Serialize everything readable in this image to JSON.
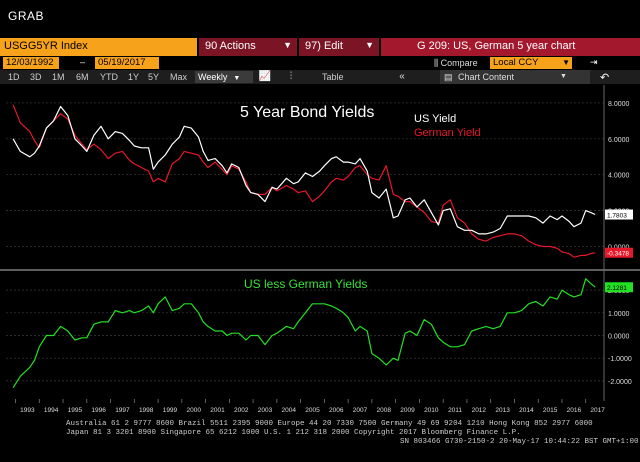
{
  "window": {
    "title": "GRAB"
  },
  "command_bar": {
    "ticker": "USGG5YR Index",
    "actions_label": "90 Actions",
    "edit_label": "97) Edit",
    "graph_title": "G 209: US, German 5 year chart"
  },
  "date_bar": {
    "start_date": "12/03/1992",
    "end_date": "05/19/2017",
    "compare_label": "Compare",
    "currency": "Local CCY"
  },
  "toolbar": {
    "periods": [
      "1D",
      "3D",
      "1M",
      "6M",
      "YTD",
      "1Y",
      "5Y",
      "Max"
    ],
    "frequency": "Weekly",
    "table_label": "Table",
    "chart_content_label": "Chart Content"
  },
  "chart_data": [
    {
      "type": "line",
      "title": "5 Year Bond Yields",
      "yticks": [
        "8.0000",
        "6.0000",
        "4.0000",
        "2.0000",
        "0.0000"
      ],
      "ylim": [
        -1.2,
        9.0
      ],
      "grid": true,
      "legend_position": "top-right",
      "colors": {
        "US Yield": "#ffffff",
        "German Yield": "#e8172a"
      },
      "series": [
        {
          "name": "US Yield",
          "x": [
            1992.9,
            1993.2,
            1993.6,
            1993.8,
            1994.0,
            1994.3,
            1994.6,
            1994.9,
            1995.2,
            1995.5,
            1995.8,
            1996.0,
            1996.3,
            1996.6,
            1996.9,
            1997.2,
            1997.5,
            1997.8,
            1998.0,
            1998.3,
            1998.6,
            1998.8,
            1999.0,
            1999.3,
            1999.6,
            1999.9,
            2000.1,
            2000.4,
            2000.7,
            2000.9,
            2001.1,
            2001.4,
            2001.7,
            2001.9,
            2002.1,
            2002.4,
            2002.7,
            2002.9,
            2003.2,
            2003.5,
            2003.8,
            2004.0,
            2004.4,
            2004.7,
            2004.9,
            2005.2,
            2005.5,
            2005.8,
            2006.0,
            2006.3,
            2006.5,
            2006.8,
            2007.0,
            2007.3,
            2007.5,
            2007.8,
            2008.0,
            2008.3,
            2008.6,
            2008.9,
            2009.1,
            2009.4,
            2009.6,
            2009.9,
            2010.2,
            2010.5,
            2010.8,
            2011.0,
            2011.3,
            2011.6,
            2011.9,
            2012.2,
            2012.5,
            2012.8,
            2013.1,
            2013.4,
            2013.7,
            2014.0,
            2014.3,
            2014.6,
            2014.9,
            2015.2,
            2015.5,
            2015.8,
            2016.0,
            2016.3,
            2016.5,
            2016.8,
            2017.0,
            2017.2,
            2017.4
          ],
          "values": [
            6.0,
            5.3,
            5.0,
            5.2,
            5.6,
            6.6,
            7.0,
            7.8,
            7.3,
            6.0,
            5.6,
            5.3,
            6.2,
            6.7,
            6.0,
            6.4,
            6.3,
            5.9,
            5.6,
            5.5,
            5.5,
            4.3,
            4.7,
            5.1,
            5.7,
            6.1,
            6.7,
            6.6,
            6.1,
            5.3,
            4.8,
            4.9,
            4.5,
            4.1,
            4.6,
            4.4,
            3.4,
            3.0,
            2.9,
            2.5,
            3.3,
            3.2,
            3.8,
            3.5,
            3.6,
            4.1,
            3.9,
            4.2,
            4.5,
            4.9,
            5.0,
            4.7,
            4.7,
            4.6,
            4.9,
            4.2,
            3.0,
            2.7,
            3.2,
            1.6,
            1.7,
            2.6,
            2.7,
            2.2,
            2.6,
            1.9,
            1.2,
            2.0,
            2.1,
            1.1,
            0.9,
            0.9,
            0.7,
            0.7,
            0.8,
            1.0,
            1.7,
            1.7,
            1.7,
            1.7,
            1.6,
            1.3,
            1.7,
            1.5,
            1.7,
            1.4,
            1.1,
            1.3,
            2.0,
            1.9,
            1.78
          ]
        },
        {
          "name": "German Yield",
          "x": [
            1992.9,
            1993.2,
            1993.6,
            1993.8,
            1994.0,
            1994.3,
            1994.6,
            1994.9,
            1995.2,
            1995.5,
            1995.8,
            1996.0,
            1996.3,
            1996.6,
            1996.9,
            1997.2,
            1997.5,
            1997.8,
            1998.0,
            1998.3,
            1998.6,
            1998.8,
            1999.0,
            1999.3,
            1999.6,
            1999.9,
            2000.1,
            2000.4,
            2000.7,
            2000.9,
            2001.1,
            2001.4,
            2001.7,
            2001.9,
            2002.1,
            2002.4,
            2002.7,
            2002.9,
            2003.2,
            2003.5,
            2003.8,
            2004.0,
            2004.4,
            2004.7,
            2004.9,
            2005.2,
            2005.5,
            2005.8,
            2006.0,
            2006.3,
            2006.5,
            2006.8,
            2007.0,
            2007.3,
            2007.5,
            2007.8,
            2008.0,
            2008.3,
            2008.6,
            2008.9,
            2009.1,
            2009.4,
            2009.6,
            2009.9,
            2010.2,
            2010.5,
            2010.8,
            2011.0,
            2011.3,
            2011.6,
            2011.9,
            2012.2,
            2012.5,
            2012.8,
            2013.1,
            2013.4,
            2013.7,
            2014.0,
            2014.3,
            2014.6,
            2014.9,
            2015.2,
            2015.5,
            2015.8,
            2016.0,
            2016.3,
            2016.5,
            2016.8,
            2017.0,
            2017.2,
            2017.4
          ],
          "values": [
            7.9,
            6.9,
            6.4,
            5.9,
            5.5,
            6.6,
            7.0,
            7.4,
            7.1,
            6.2,
            5.7,
            5.4,
            5.7,
            5.4,
            4.9,
            5.2,
            5.3,
            4.8,
            4.6,
            4.4,
            4.2,
            3.6,
            3.8,
            3.6,
            4.6,
            4.9,
            5.3,
            5.2,
            5.1,
            4.7,
            4.4,
            4.7,
            4.3,
            4.0,
            4.5,
            4.3,
            3.6,
            3.0,
            2.9,
            2.9,
            3.3,
            3.1,
            3.4,
            3.2,
            3.0,
            3.1,
            2.5,
            2.8,
            3.1,
            3.6,
            3.8,
            3.7,
            3.9,
            4.4,
            4.5,
            4.0,
            3.8,
            3.7,
            4.5,
            2.9,
            2.8,
            2.5,
            2.5,
            2.2,
            1.9,
            1.4,
            1.3,
            2.3,
            2.6,
            1.6,
            1.3,
            0.7,
            0.4,
            0.3,
            0.5,
            0.6,
            0.7,
            0.7,
            0.6,
            0.3,
            0.1,
            0.0,
            0.0,
            -0.1,
            -0.3,
            -0.4,
            -0.6,
            -0.5,
            -0.5,
            -0.4,
            -0.35
          ]
        }
      ],
      "last_values": {
        "US Yield": "1.7803",
        "German Yield": "-0.3478"
      }
    },
    {
      "type": "line",
      "title": "US less German Yields",
      "yticks": [
        "2.0000",
        "1.0000",
        "0.0000",
        "-1.0000",
        "-2.0000"
      ],
      "ylim": [
        -2.8,
        2.8
      ],
      "grid": true,
      "colors": {
        "US less German Yields": "#22e022"
      },
      "series": [
        {
          "name": "US less German Yields",
          "x": [
            1992.9,
            1993.2,
            1993.6,
            1993.8,
            1994.0,
            1994.3,
            1994.6,
            1994.9,
            1995.2,
            1995.5,
            1995.8,
            1996.0,
            1996.3,
            1996.6,
            1996.9,
            1997.2,
            1997.5,
            1997.8,
            1998.0,
            1998.3,
            1998.6,
            1998.8,
            1999.0,
            1999.3,
            1999.6,
            1999.9,
            2000.1,
            2000.4,
            2000.7,
            2000.9,
            2001.1,
            2001.4,
            2001.7,
            2001.9,
            2002.1,
            2002.4,
            2002.7,
            2002.9,
            2003.2,
            2003.5,
            2003.8,
            2004.0,
            2004.4,
            2004.7,
            2004.9,
            2005.2,
            2005.5,
            2005.8,
            2006.0,
            2006.3,
            2006.5,
            2006.8,
            2007.0,
            2007.3,
            2007.5,
            2007.8,
            2008.0,
            2008.3,
            2008.6,
            2008.9,
            2009.1,
            2009.4,
            2009.6,
            2009.9,
            2010.2,
            2010.5,
            2010.8,
            2011.0,
            2011.3,
            2011.6,
            2011.9,
            2012.2,
            2012.5,
            2012.8,
            2013.1,
            2013.4,
            2013.7,
            2014.0,
            2014.3,
            2014.6,
            2014.9,
            2015.2,
            2015.5,
            2015.8,
            2016.0,
            2016.3,
            2016.5,
            2016.8,
            2017.0,
            2017.2,
            2017.4
          ],
          "values": [
            -2.3,
            -1.8,
            -1.4,
            -1.1,
            -0.5,
            0.0,
            0.0,
            0.4,
            0.2,
            -0.2,
            -0.1,
            -0.1,
            0.5,
            0.6,
            0.6,
            1.1,
            1.0,
            1.1,
            1.0,
            1.1,
            1.3,
            1.0,
            1.4,
            1.7,
            1.1,
            1.2,
            1.4,
            1.4,
            1.0,
            0.6,
            0.4,
            0.2,
            0.2,
            0.0,
            0.1,
            0.1,
            -0.2,
            0.0,
            0.0,
            -0.4,
            0.0,
            0.1,
            0.4,
            0.3,
            0.6,
            1.0,
            1.4,
            1.4,
            1.4,
            1.3,
            1.2,
            1.0,
            0.8,
            0.2,
            0.4,
            0.2,
            -0.8,
            -1.0,
            -1.3,
            -1.0,
            -1.1,
            0.1,
            0.2,
            0.0,
            0.7,
            0.5,
            -0.1,
            -0.3,
            -0.5,
            -0.5,
            -0.4,
            0.2,
            0.3,
            0.4,
            0.3,
            0.4,
            1.0,
            1.0,
            1.1,
            1.4,
            1.5,
            1.3,
            1.7,
            1.6,
            2.0,
            1.8,
            1.7,
            1.8,
            2.5,
            2.3,
            2.13
          ]
        }
      ],
      "last_value": "2.1281"
    }
  ],
  "x_axis": {
    "labels": [
      "1993",
      "1994",
      "1995",
      "1996",
      "1997",
      "1998",
      "1999",
      "2000",
      "2001",
      "2002",
      "2003",
      "2004",
      "2005",
      "2006",
      "2007",
      "2008",
      "2009",
      "2010",
      "2011",
      "2012",
      "2013",
      "2014",
      "2015",
      "2016",
      "2017"
    ]
  },
  "footer": {
    "line1": "Australia 61 2 9777 8600 Brazil 5511 2395 9000 Europe 44 20 7330 7500 Germany 49 69 9204 1210 Hong Kong 852 2977 6000",
    "line2": "Japan 81 3 3201 8900         Singapore 65 6212 1000        U.S. 1 212 318 2000              Copyright 2017 Bloomberg Finance L.P.",
    "line3": "SN 803466 G730-2150-2 20-May-17 10:44:22 BST  GMT+1:00"
  }
}
